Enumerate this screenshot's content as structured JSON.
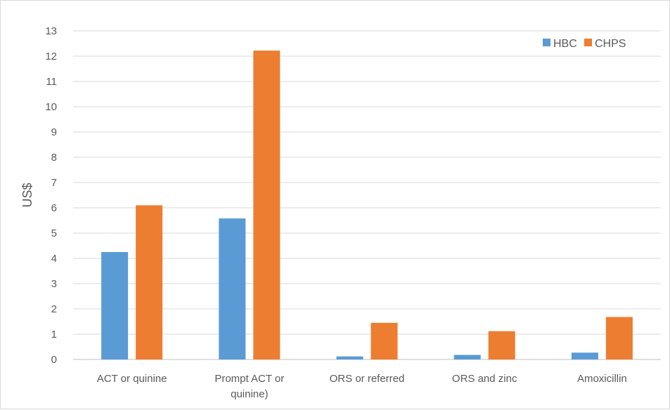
{
  "chart_data": {
    "type": "bar",
    "title": "",
    "xlabel": "",
    "ylabel": "US$",
    "ylim": [
      0,
      13
    ],
    "yticks": [
      0,
      1,
      2,
      3,
      4,
      5,
      6,
      7,
      8,
      9,
      10,
      11,
      12,
      13
    ],
    "grid": true,
    "legend_position": "top-right",
    "categories": [
      [
        "ACT or quinine"
      ],
      [
        "Prompt ACT or",
        "quinine)"
      ],
      [
        "ORS or referred"
      ],
      [
        "ORS and zinc"
      ],
      [
        "Amoxicillin"
      ]
    ],
    "series": [
      {
        "name": "HBC",
        "color": "#5b9bd5",
        "values": [
          4.25,
          5.58,
          0.12,
          0.18,
          0.27
        ]
      },
      {
        "name": "CHPS",
        "color": "#ed7d31",
        "values": [
          6.1,
          12.22,
          1.45,
          1.12,
          1.68
        ]
      }
    ]
  }
}
